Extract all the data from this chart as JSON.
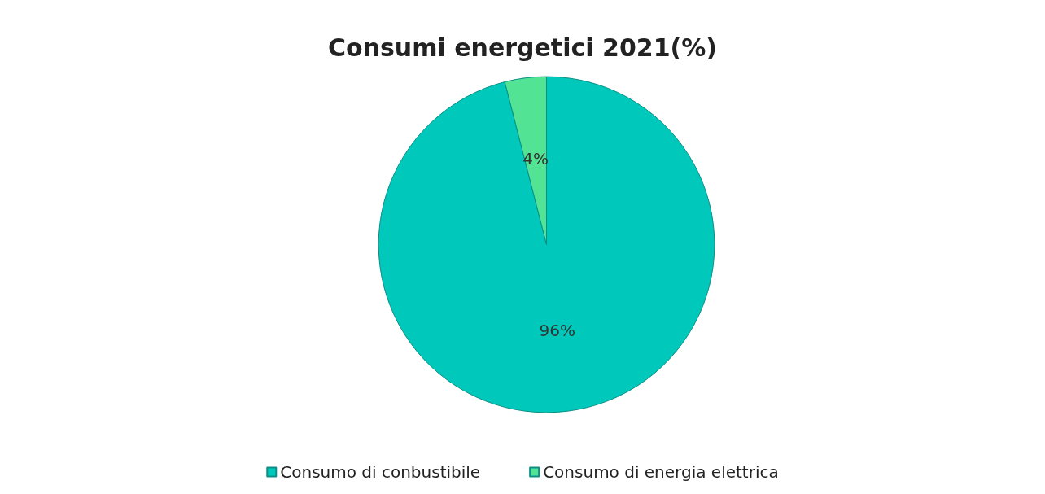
{
  "chart_data": {
    "type": "pie",
    "title": "Consumi energetici 2021(%)",
    "categories": [
      "Consumo di conbustibile",
      "Consumo di energia elettrica"
    ],
    "values": [
      96,
      4
    ],
    "colors": [
      "#00c9bc",
      "#52e394"
    ],
    "value_labels": [
      "96%",
      "4%"
    ],
    "legend": "bottom"
  }
}
